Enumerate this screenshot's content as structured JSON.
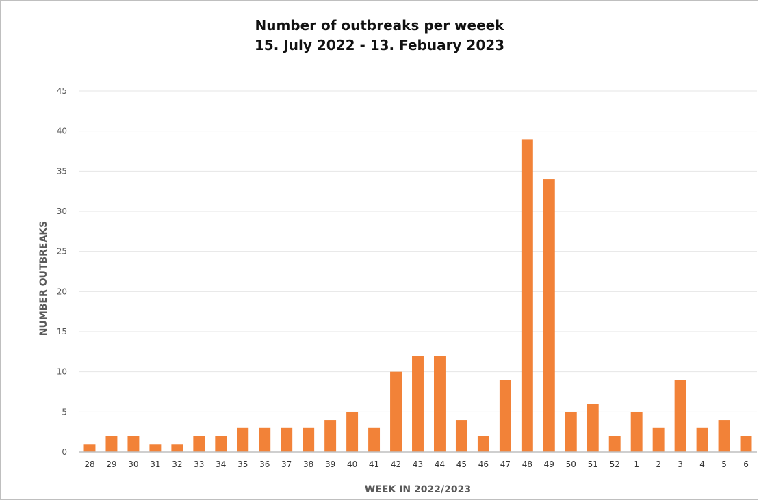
{
  "chart_data": {
    "type": "bar",
    "title_line1": "Number of outbreaks per weeek",
    "title_line2": "15. July 2022 - 13. Febuary 2023",
    "xlabel": "WEEK IN 2022/2023",
    "ylabel": "NUMBER OUTBREAKS",
    "ylim": [
      0,
      45
    ],
    "yticks": [
      0,
      5,
      10,
      15,
      20,
      25,
      30,
      35,
      40,
      45
    ],
    "grid": true,
    "legend": "none",
    "bar_color": "#F28238",
    "categories": [
      "28",
      "29",
      "30",
      "31",
      "32",
      "33",
      "34",
      "35",
      "36",
      "37",
      "38",
      "39",
      "40",
      "41",
      "42",
      "43",
      "44",
      "45",
      "46",
      "47",
      "48",
      "49",
      "50",
      "51",
      "52",
      "1",
      "2",
      "3",
      "4",
      "5",
      "6"
    ],
    "values": [
      1,
      2,
      2,
      1,
      1,
      2,
      2,
      3,
      3,
      3,
      3,
      4,
      5,
      3,
      10,
      12,
      12,
      4,
      2,
      9,
      39,
      34,
      5,
      6,
      2,
      5,
      3,
      9,
      3,
      4,
      2
    ]
  }
}
